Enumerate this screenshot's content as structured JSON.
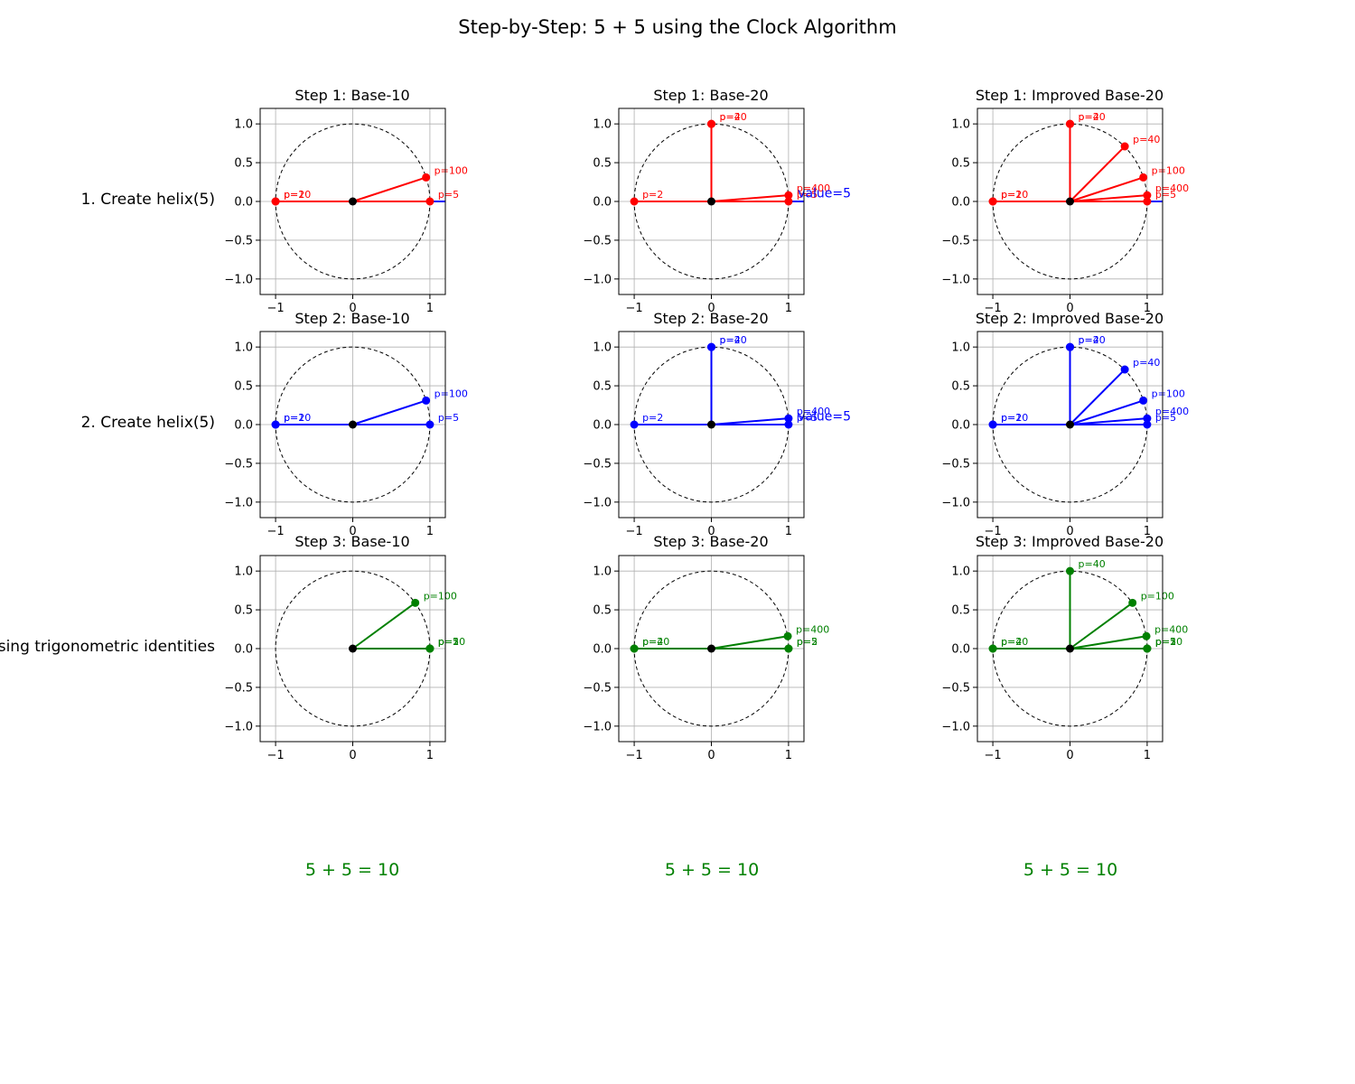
{
  "page": {
    "title": "Step-by-Step: 5 + 5 using the Clock Algorithm",
    "row_labels": [
      "1. Create helix(5)",
      "2. Create helix(5)",
      "using trigonometric identities"
    ],
    "column_results": [
      "5 + 5 = 10",
      "5 + 5 = 10",
      "5 + 5 = 10"
    ]
  },
  "colors": {
    "step1": "#ff0000",
    "step2": "#0000ff",
    "step3": "#008000",
    "sum_axis": "#0000ff",
    "grid": "#b0b0b0"
  },
  "chart_data": [
    {
      "type": "scatter",
      "title": "Step 1: Base-10",
      "xlim": [
        -1.2,
        1.2
      ],
      "ylim": [
        -1.2,
        1.2
      ],
      "xticks": [
        -1,
        0,
        1
      ],
      "yticks": [
        -1.0,
        -0.5,
        0.0,
        0.5,
        1.0
      ],
      "grid": true,
      "unit_circle": true,
      "series": [
        {
          "color": "#ff0000",
          "style": "rays",
          "points": [
            {
              "label": "p=2",
              "x": -1.0,
              "y": 0.0
            },
            {
              "label": "p=5",
              "x": 1.0,
              "y": 0.0
            },
            {
              "label": "p=10",
              "x": -1.0,
              "y": 0.0
            },
            {
              "label": "p=100",
              "x": 0.95,
              "y": 0.31
            }
          ]
        }
      ],
      "value_axis": {
        "color": "#0000ff",
        "to_x": 1.2
      }
    },
    {
      "type": "scatter",
      "title": "Step 1: Base-20",
      "xlim": [
        -1.2,
        1.2
      ],
      "ylim": [
        -1.2,
        1.2
      ],
      "xticks": [
        -1,
        0,
        1
      ],
      "yticks": [
        -1.0,
        -0.5,
        0.0,
        0.5,
        1.0
      ],
      "grid": true,
      "unit_circle": true,
      "series": [
        {
          "color": "#ff0000",
          "style": "rays",
          "points": [
            {
              "label": "p=2",
              "x": -1.0,
              "y": 0.0
            },
            {
              "label": "p=4",
              "x": 0.0,
              "y": 1.0
            },
            {
              "label": "p=20",
              "x": 0.0,
              "y": 1.0
            },
            {
              "label": "p=400",
              "x": 1.0,
              "y": 0.08
            },
            {
              "label": "p=5",
              "x": 1.0,
              "y": 0.0
            }
          ]
        }
      ],
      "value_axis": {
        "color": "#0000ff",
        "to_x": 1.2
      },
      "annotation": {
        "text": "value=5",
        "x": 1.12,
        "y": 0.05,
        "color": "#0000ff"
      }
    },
    {
      "type": "scatter",
      "title": "Step 1: Improved Base-20",
      "xlim": [
        -1.2,
        1.2
      ],
      "ylim": [
        -1.2,
        1.2
      ],
      "xticks": [
        -1,
        0,
        1
      ],
      "yticks": [
        -1.0,
        -0.5,
        0.0,
        0.5,
        1.0
      ],
      "grid": true,
      "unit_circle": true,
      "series": [
        {
          "color": "#ff0000",
          "style": "rays",
          "points": [
            {
              "label": "p=2",
              "x": -1.0,
              "y": 0.0
            },
            {
              "label": "p=4",
              "x": 0.0,
              "y": 1.0
            },
            {
              "label": "p=20",
              "x": 0.0,
              "y": 1.0
            },
            {
              "label": "p=10",
              "x": -1.0,
              "y": 0.0
            },
            {
              "label": "p=40",
              "x": 0.71,
              "y": 0.71
            },
            {
              "label": "p=100",
              "x": 0.95,
              "y": 0.31
            },
            {
              "label": "p=400",
              "x": 1.0,
              "y": 0.08
            },
            {
              "label": "p=5",
              "x": 1.0,
              "y": 0.0
            }
          ]
        }
      ],
      "value_axis": {
        "color": "#0000ff",
        "to_x": 1.2
      }
    },
    {
      "type": "scatter",
      "title": "Step 2: Base-10",
      "xlim": [
        -1.2,
        1.2
      ],
      "ylim": [
        -1.2,
        1.2
      ],
      "xticks": [
        -1,
        0,
        1
      ],
      "yticks": [
        -1.0,
        -0.5,
        0.0,
        0.5,
        1.0
      ],
      "grid": true,
      "unit_circle": true,
      "series": [
        {
          "color": "#0000ff",
          "style": "rays",
          "points": [
            {
              "label": "p=2",
              "x": -1.0,
              "y": 0.0
            },
            {
              "label": "p=5",
              "x": 1.0,
              "y": 0.0
            },
            {
              "label": "p=10",
              "x": -1.0,
              "y": 0.0
            },
            {
              "label": "p=100",
              "x": 0.95,
              "y": 0.31
            }
          ]
        }
      ],
      "value_axis": {
        "color": "#0000ff",
        "to_x": 1.0
      }
    },
    {
      "type": "scatter",
      "title": "Step 2: Base-20",
      "xlim": [
        -1.2,
        1.2
      ],
      "ylim": [
        -1.2,
        1.2
      ],
      "xticks": [
        -1,
        0,
        1
      ],
      "yticks": [
        -1.0,
        -0.5,
        0.0,
        0.5,
        1.0
      ],
      "grid": true,
      "unit_circle": true,
      "series": [
        {
          "color": "#0000ff",
          "style": "rays",
          "points": [
            {
              "label": "p=2",
              "x": -1.0,
              "y": 0.0
            },
            {
              "label": "p=4",
              "x": 0.0,
              "y": 1.0
            },
            {
              "label": "p=20",
              "x": 0.0,
              "y": 1.0
            },
            {
              "label": "p=400",
              "x": 1.0,
              "y": 0.08
            },
            {
              "label": "p=5",
              "x": 1.0,
              "y": 0.0
            }
          ]
        }
      ],
      "value_axis": {
        "color": "#0000ff",
        "to_x": 1.0
      },
      "annotation": {
        "text": "value=5",
        "x": 1.12,
        "y": 0.05,
        "color": "#0000ff"
      }
    },
    {
      "type": "scatter",
      "title": "Step 2: Improved Base-20",
      "xlim": [
        -1.2,
        1.2
      ],
      "ylim": [
        -1.2,
        1.2
      ],
      "xticks": [
        -1,
        0,
        1
      ],
      "yticks": [
        -1.0,
        -0.5,
        0.0,
        0.5,
        1.0
      ],
      "grid": true,
      "unit_circle": true,
      "series": [
        {
          "color": "#0000ff",
          "style": "rays",
          "points": [
            {
              "label": "p=2",
              "x": -1.0,
              "y": 0.0
            },
            {
              "label": "p=4",
              "x": 0.0,
              "y": 1.0
            },
            {
              "label": "p=20",
              "x": 0.0,
              "y": 1.0
            },
            {
              "label": "p=10",
              "x": -1.0,
              "y": 0.0
            },
            {
              "label": "p=40",
              "x": 0.71,
              "y": 0.71
            },
            {
              "label": "p=100",
              "x": 0.95,
              "y": 0.31
            },
            {
              "label": "p=400",
              "x": 1.0,
              "y": 0.08
            },
            {
              "label": "p=5",
              "x": 1.0,
              "y": 0.0
            }
          ]
        }
      ],
      "value_axis": {
        "color": "#0000ff",
        "to_x": 1.0
      }
    },
    {
      "type": "scatter",
      "title": "Step 3: Base-10",
      "xlim": [
        -1.2,
        1.2
      ],
      "ylim": [
        -1.2,
        1.2
      ],
      "xticks": [
        -1,
        0,
        1
      ],
      "yticks": [
        -1.0,
        -0.5,
        0.0,
        0.5,
        1.0
      ],
      "grid": true,
      "unit_circle": true,
      "series": [
        {
          "color": "#008000",
          "style": "rays",
          "points": [
            {
              "label": "p=2",
              "x": 1.0,
              "y": 0.0
            },
            {
              "label": "p=5",
              "x": 1.0,
              "y": 0.0
            },
            {
              "label": "p=10",
              "x": 1.0,
              "y": 0.0
            },
            {
              "label": "p=100",
              "x": 0.81,
              "y": 0.59
            }
          ]
        }
      ],
      "value_axis": {
        "color": "#0000ff",
        "to_x": 1.0
      }
    },
    {
      "type": "scatter",
      "title": "Step 3: Base-20",
      "xlim": [
        -1.2,
        1.2
      ],
      "ylim": [
        -1.2,
        1.2
      ],
      "xticks": [
        -1,
        0,
        1
      ],
      "yticks": [
        -1.0,
        -0.5,
        0.0,
        0.5,
        1.0
      ],
      "grid": true,
      "unit_circle": true,
      "series": [
        {
          "color": "#008000",
          "style": "rays",
          "points": [
            {
              "label": "p=4",
              "x": -1.0,
              "y": 0.0
            },
            {
              "label": "p=20",
              "x": -1.0,
              "y": 0.0
            },
            {
              "label": "p=2",
              "x": 1.0,
              "y": 0.0
            },
            {
              "label": "p=5",
              "x": 1.0,
              "y": 0.0
            },
            {
              "label": "p=400",
              "x": 0.99,
              "y": 0.16
            }
          ]
        }
      ],
      "value_axis": {
        "color": "#0000ff",
        "to_x": 1.0
      }
    },
    {
      "type": "scatter",
      "title": "Step 3: Improved Base-20",
      "xlim": [
        -1.2,
        1.2
      ],
      "ylim": [
        -1.2,
        1.2
      ],
      "xticks": [
        -1,
        0,
        1
      ],
      "yticks": [
        -1.0,
        -0.5,
        0.0,
        0.5,
        1.0
      ],
      "grid": true,
      "unit_circle": true,
      "series": [
        {
          "color": "#008000",
          "style": "rays",
          "points": [
            {
              "label": "p=4",
              "x": -1.0,
              "y": 0.0
            },
            {
              "label": "p=20",
              "x": -1.0,
              "y": 0.0
            },
            {
              "label": "p=40",
              "x": 0.0,
              "y": 1.0
            },
            {
              "label": "p=100",
              "x": 0.81,
              "y": 0.59
            },
            {
              "label": "p=400",
              "x": 0.99,
              "y": 0.16
            },
            {
              "label": "p=2",
              "x": 1.0,
              "y": 0.0
            },
            {
              "label": "p=5",
              "x": 1.0,
              "y": 0.0
            },
            {
              "label": "p=10",
              "x": 1.0,
              "y": 0.0
            }
          ]
        }
      ],
      "value_axis": {
        "color": "#0000ff",
        "to_x": 1.0
      }
    }
  ]
}
